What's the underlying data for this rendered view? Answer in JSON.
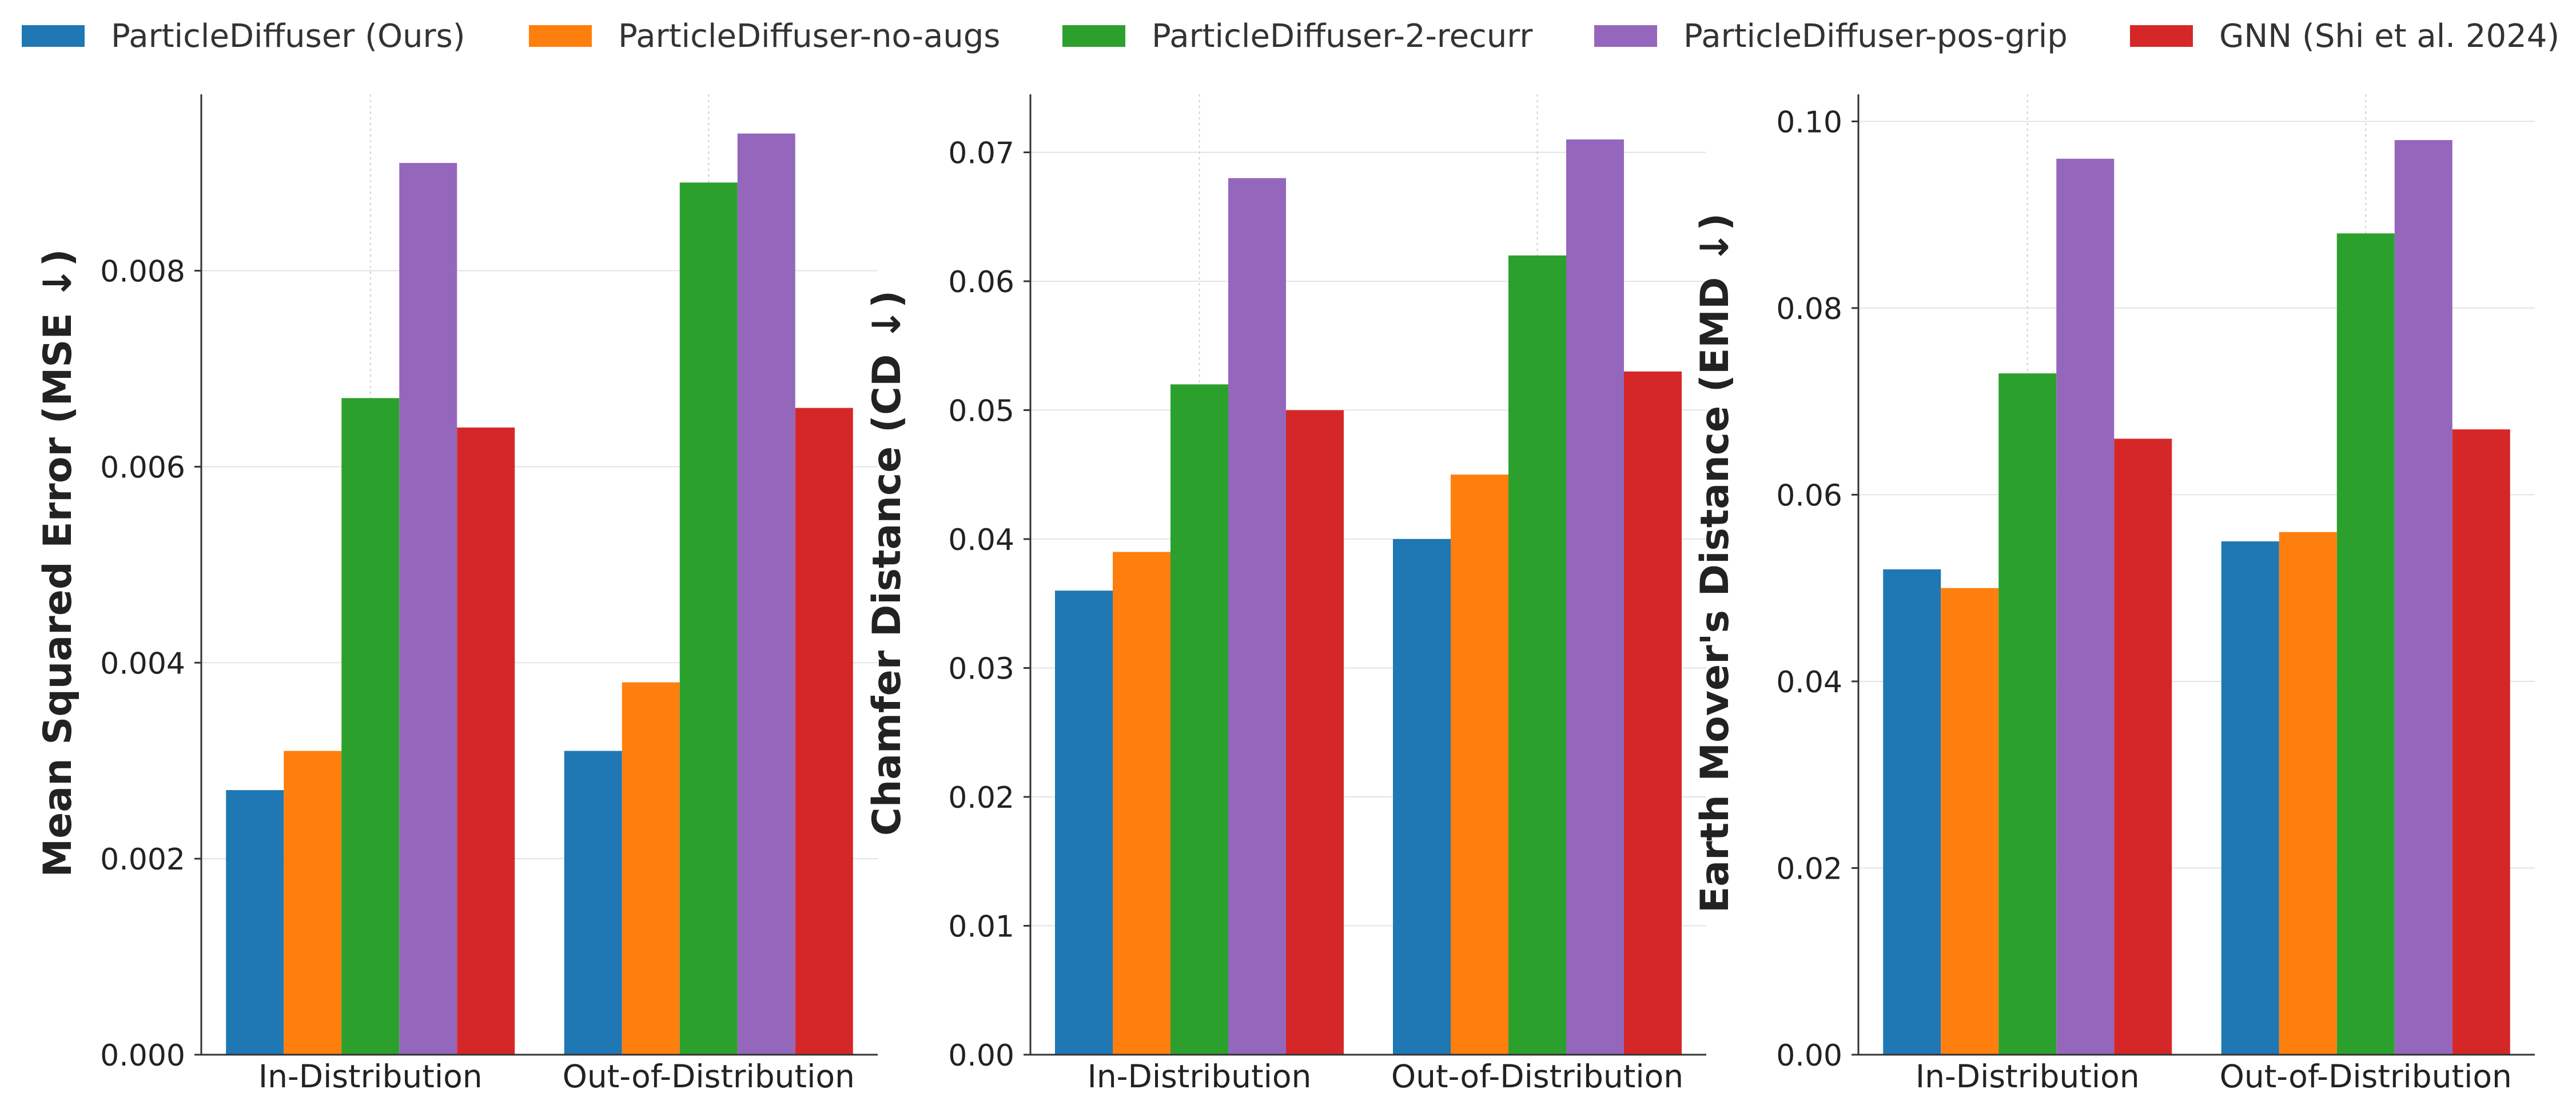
{
  "legend": [
    {
      "name": "ParticleDiffuser (Ours)",
      "color": "#1f77b4"
    },
    {
      "name": "ParticleDiffuser-no-augs",
      "color": "#ff7f0e"
    },
    {
      "name": "ParticleDiffuser-2-recurr",
      "color": "#2ca02c"
    },
    {
      "name": "ParticleDiffuser-pos-grip",
      "color": "#9467bd"
    },
    {
      "name": "GNN (Shi et al. 2024)",
      "color": "#d62728"
    }
  ],
  "chart_data": [
    {
      "type": "bar",
      "categories": [
        "In-Distribution",
        "Out-of-Distribution"
      ],
      "ylabel": "Mean Squared Error (MSE ↓)",
      "ylim": [
        0,
        0.0098
      ],
      "yticks": [
        "0.000",
        "0.002",
        "0.004",
        "0.006",
        "0.008"
      ],
      "grid": true,
      "series": [
        {
          "name": "ParticleDiffuser (Ours)",
          "values": [
            0.0027,
            0.0031
          ]
        },
        {
          "name": "ParticleDiffuser-no-augs",
          "values": [
            0.0031,
            0.0038
          ]
        },
        {
          "name": "ParticleDiffuser-2-recurr",
          "values": [
            0.0067,
            0.0089
          ]
        },
        {
          "name": "ParticleDiffuser-pos-grip",
          "values": [
            0.0091,
            0.0094
          ]
        },
        {
          "name": "GNN (Shi et al. 2024)",
          "values": [
            0.0064,
            0.0066
          ]
        }
      ]
    },
    {
      "type": "bar",
      "categories": [
        "In-Distribution",
        "Out-of-Distribution"
      ],
      "ylabel": "Chamfer Distance (CD ↓)",
      "ylim": [
        0,
        0.0745
      ],
      "yticks": [
        "0.00",
        "0.01",
        "0.02",
        "0.03",
        "0.04",
        "0.05",
        "0.06",
        "0.07"
      ],
      "grid": true,
      "series": [
        {
          "name": "ParticleDiffuser (Ours)",
          "values": [
            0.036,
            0.04
          ]
        },
        {
          "name": "ParticleDiffuser-no-augs",
          "values": [
            0.039,
            0.045
          ]
        },
        {
          "name": "ParticleDiffuser-2-recurr",
          "values": [
            0.052,
            0.062
          ]
        },
        {
          "name": "ParticleDiffuser-pos-grip",
          "values": [
            0.068,
            0.071
          ]
        },
        {
          "name": "GNN (Shi et al. 2024)",
          "values": [
            0.05,
            0.053
          ]
        }
      ]
    },
    {
      "type": "bar",
      "categories": [
        "In-Distribution",
        "Out-of-Distribution"
      ],
      "ylabel": "Earth Mover's Distance (EMD ↓)",
      "ylim": [
        0,
        0.1029
      ],
      "yticks": [
        "0.00",
        "0.02",
        "0.04",
        "0.06",
        "0.08",
        "0.10"
      ],
      "grid": true,
      "series": [
        {
          "name": "ParticleDiffuser (Ours)",
          "values": [
            0.052,
            0.055
          ]
        },
        {
          "name": "ParticleDiffuser-no-augs",
          "values": [
            0.05,
            0.056
          ]
        },
        {
          "name": "ParticleDiffuser-2-recurr",
          "values": [
            0.073,
            0.088
          ]
        },
        {
          "name": "ParticleDiffuser-pos-grip",
          "values": [
            0.096,
            0.098
          ]
        },
        {
          "name": "GNN (Shi et al. 2024)",
          "values": [
            0.066,
            0.067
          ]
        }
      ]
    }
  ]
}
